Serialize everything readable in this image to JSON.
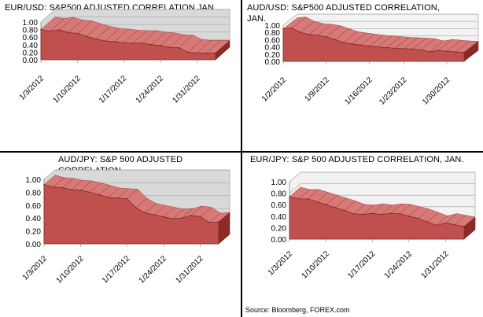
{
  "source": "Source: Bloomberg, FOREX.com",
  "colors": {
    "fill": "#c0504d",
    "side": "#8b2a27",
    "top": "#d77a77",
    "wall": "#d9d9d9",
    "wall_light": "#f2f2f2",
    "grid": "#a6a6a6"
  },
  "chart_data": [
    {
      "type": "area",
      "title": "EUR/USD: S&P500 ADJUSTED  CORRELATION  JAN.",
      "ylim": [
        0,
        1
      ],
      "yticks": [
        "1.00",
        "0.80",
        "0.60",
        "0.40",
        "0.20",
        "0.00"
      ],
      "xticks": [
        "1/3/2012",
        "1/10/2012",
        "1/17/2012",
        "1/24/2012",
        "1/31/2012"
      ],
      "x": [
        "1/3",
        "1/4",
        "1/5",
        "1/6",
        "1/9",
        "1/10",
        "1/11",
        "1/12",
        "1/13",
        "1/17",
        "1/18",
        "1/19",
        "1/20",
        "1/23",
        "1/24",
        "1/25",
        "1/26",
        "1/27",
        "1/30",
        "1/31"
      ],
      "values": [
        0.8,
        0.76,
        0.79,
        0.72,
        0.7,
        0.62,
        0.55,
        0.5,
        0.48,
        0.45,
        0.44,
        0.44,
        0.4,
        0.38,
        0.33,
        0.32,
        0.2,
        0.18,
        0.18,
        0.18
      ]
    },
    {
      "type": "area",
      "title": "AUD/USD: S&P500 ADJUSTED  CORRELATION,\nJAN.",
      "ylim": [
        0,
        1
      ],
      "yticks": [
        "1.00",
        "0.80",
        "0.60",
        "0.40",
        "0.20",
        "0.00"
      ],
      "xticks": [
        "1/2/2012",
        "1/9/2012",
        "1/16/2012",
        "1/23/2012",
        "1/30/2012"
      ],
      "x": [
        "1/2",
        "1/3",
        "1/4",
        "1/5",
        "1/6",
        "1/9",
        "1/10",
        "1/11",
        "1/12",
        "1/13",
        "1/16",
        "1/17",
        "1/18",
        "1/19",
        "1/20",
        "1/23",
        "1/24",
        "1/25",
        "1/26",
        "1/27",
        "1/30",
        "1/31"
      ],
      "values": [
        0.9,
        0.92,
        0.8,
        0.74,
        0.72,
        0.68,
        0.6,
        0.52,
        0.48,
        0.45,
        0.42,
        0.4,
        0.38,
        0.36,
        0.35,
        0.34,
        0.32,
        0.26,
        0.3,
        0.28,
        0.26,
        0.25
      ]
    },
    {
      "type": "area",
      "title": "AUD/JPY:  S&P 500 ADJUSTED\nCORRELATION",
      "ylim": [
        0,
        1
      ],
      "yticks": [
        "1.00",
        "0.80",
        "0.60",
        "0.40",
        "0.20",
        "0.00"
      ],
      "xticks": [
        "1/3/2012",
        "1/10/2012",
        "1/17/2012",
        "1/24/2012",
        "1/31/2012"
      ],
      "x": [
        "1/3",
        "1/4",
        "1/5",
        "1/6",
        "1/9",
        "1/10",
        "1/11",
        "1/12",
        "1/13",
        "1/17",
        "1/18",
        "1/19",
        "1/20",
        "1/23",
        "1/24",
        "1/25",
        "1/26",
        "1/27",
        "1/30",
        "1/31"
      ],
      "values": [
        0.92,
        0.88,
        0.87,
        0.84,
        0.83,
        0.8,
        0.76,
        0.72,
        0.71,
        0.7,
        0.56,
        0.48,
        0.45,
        0.42,
        0.39,
        0.4,
        0.44,
        0.42,
        0.33,
        0.34
      ]
    },
    {
      "type": "area",
      "title": "EUR/JPY: S&P 500 ADJUSTED  CORRELATION,  JAN.",
      "ylim": [
        0,
        1
      ],
      "yticks": [
        "1.00",
        "0.80",
        "0.60",
        "0.40",
        "0.20",
        "0.00"
      ],
      "xticks": [
        "1/3/2012",
        "1/10/2012",
        "1/17/2012",
        "1/24/2012",
        "1/31/2012"
      ],
      "x": [
        "1/3",
        "1/4",
        "1/5",
        "1/6",
        "1/9",
        "1/10",
        "1/11",
        "1/12",
        "1/13",
        "1/17",
        "1/18",
        "1/19",
        "1/20",
        "1/23",
        "1/24",
        "1/25",
        "1/26",
        "1/27",
        "1/30",
        "1/31"
      ],
      "values": [
        0.74,
        0.7,
        0.7,
        0.65,
        0.6,
        0.55,
        0.5,
        0.44,
        0.43,
        0.45,
        0.43,
        0.45,
        0.44,
        0.4,
        0.36,
        0.3,
        0.24,
        0.28,
        0.25,
        0.22
      ]
    }
  ]
}
